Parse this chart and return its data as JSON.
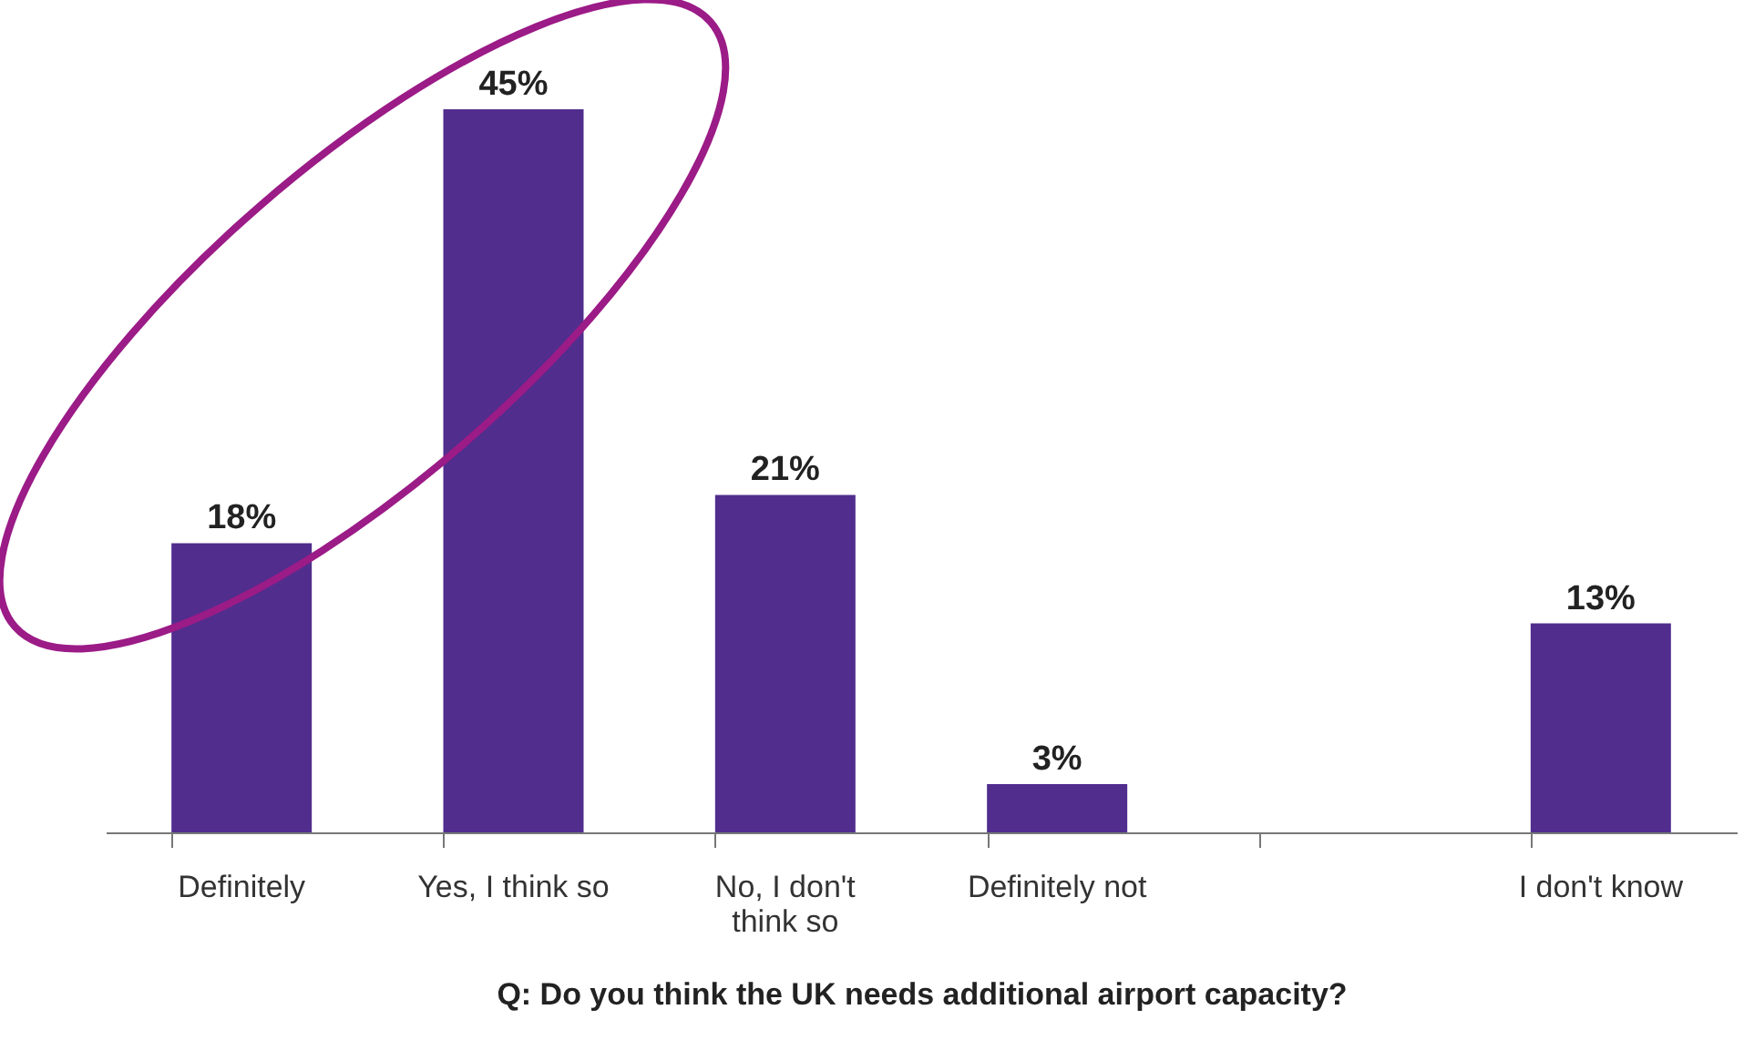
{
  "chart_data": {
    "type": "bar",
    "xlabel": "Q: Do you think the UK needs additional airport capacity?",
    "categories": [
      "Definitely",
      "Yes, I think so",
      "No, I don't think so",
      "Definitely not",
      null,
      "I don't know"
    ],
    "values": [
      18,
      45,
      21,
      3,
      null,
      13
    ],
    "value_labels": [
      "18%",
      "45%",
      "21%",
      "3%",
      null,
      "13%"
    ],
    "color": "#512d8e",
    "grid": false
  }
}
